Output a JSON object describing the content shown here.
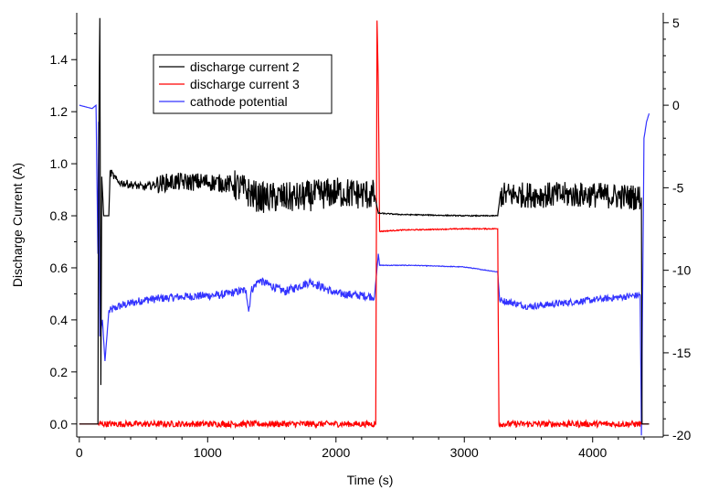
{
  "chart_data": {
    "type": "line",
    "xlabel": "Time (s)",
    "ylabel": "Discharge Current (A)",
    "y2label": "",
    "xlim": [
      -20,
      4550
    ],
    "ylim": [
      -0.05,
      1.58
    ],
    "y2lim": [
      -20.1,
      5.6
    ],
    "x_ticks": [
      0,
      1000,
      2000,
      3000,
      4000
    ],
    "y_ticks": [
      0.0,
      0.2,
      0.4,
      0.6,
      0.8,
      1.0,
      1.2,
      1.4
    ],
    "y2_ticks": [
      -20,
      -15,
      -10,
      -5,
      0,
      5
    ],
    "grid": false,
    "legend_position": "top-left",
    "series": [
      {
        "name": "discharge current 2",
        "axis": "left",
        "color": "#000000",
        "points": [
          [
            0,
            0.0
          ],
          [
            145,
            0.0
          ],
          [
            150,
            1.0
          ],
          [
            160,
            1.56
          ],
          [
            168,
            0.15
          ],
          [
            175,
            0.95
          ],
          [
            190,
            0.8
          ],
          [
            230,
            0.8
          ],
          [
            240,
            0.97
          ],
          [
            300,
            0.93
          ],
          [
            500,
            0.91
          ],
          [
            700,
            0.93
          ],
          [
            1000,
            0.93
          ],
          [
            1200,
            0.92
          ],
          [
            1400,
            0.87
          ],
          [
            1700,
            0.87
          ],
          [
            2000,
            0.89
          ],
          [
            2300,
            0.88
          ],
          [
            2330,
            0.81
          ],
          [
            2500,
            0.805
          ],
          [
            3000,
            0.8
          ],
          [
            3260,
            0.8
          ],
          [
            3280,
            0.88
          ],
          [
            4000,
            0.88
          ],
          [
            4380,
            0.87
          ],
          [
            4385,
            0.0
          ],
          [
            4440,
            0.0
          ]
        ],
        "noise": [
          [
            0,
            150,
            0.0
          ],
          [
            240,
            600,
            0.015
          ],
          [
            600,
            1200,
            0.035
          ],
          [
            1200,
            2300,
            0.06
          ],
          [
            2330,
            3260,
            0.002
          ],
          [
            3280,
            4380,
            0.05
          ]
        ]
      },
      {
        "name": "discharge current 3",
        "axis": "left",
        "color": "#ff0000",
        "points": [
          [
            0,
            0.0
          ],
          [
            2310,
            0.0
          ],
          [
            2320,
            1.55
          ],
          [
            2330,
            1.3
          ],
          [
            2340,
            0.74
          ],
          [
            2500,
            0.745
          ],
          [
            3000,
            0.75
          ],
          [
            3260,
            0.75
          ],
          [
            3270,
            0.0
          ],
          [
            4380,
            0.0
          ],
          [
            4440,
            0.0
          ]
        ],
        "noise": [
          [
            150,
            2310,
            0.012
          ],
          [
            2340,
            3260,
            0.002
          ],
          [
            3270,
            4380,
            0.012
          ]
        ]
      },
      {
        "name": "cathode potential",
        "axis": "right",
        "color": "#3333ff",
        "points": [
          [
            0,
            0.0
          ],
          [
            100,
            -0.2
          ],
          [
            130,
            0.0
          ],
          [
            145,
            -9.0
          ],
          [
            150,
            -1.0
          ],
          [
            160,
            -14.0
          ],
          [
            180,
            -13.0
          ],
          [
            200,
            -15.5
          ],
          [
            230,
            -12.5
          ],
          [
            300,
            -12.2
          ],
          [
            500,
            -11.8
          ],
          [
            800,
            -11.6
          ],
          [
            1100,
            -11.5
          ],
          [
            1300,
            -11.2
          ],
          [
            1320,
            -12.5
          ],
          [
            1340,
            -11.2
          ],
          [
            1400,
            -10.6
          ],
          [
            1600,
            -11.3
          ],
          [
            1800,
            -10.7
          ],
          [
            2000,
            -11.4
          ],
          [
            2300,
            -11.6
          ],
          [
            2330,
            -9.0
          ],
          [
            2340,
            -9.7
          ],
          [
            2600,
            -9.7
          ],
          [
            3000,
            -9.8
          ],
          [
            3260,
            -10.1
          ],
          [
            3275,
            -11.8
          ],
          [
            3500,
            -12.2
          ],
          [
            4000,
            -11.8
          ],
          [
            4370,
            -11.5
          ],
          [
            4380,
            -20.0
          ],
          [
            4400,
            -2.0
          ],
          [
            4420,
            -1.0
          ],
          [
            4440,
            -0.5
          ]
        ],
        "noise": [
          [
            230,
            2300,
            0.25
          ],
          [
            3280,
            4370,
            0.2
          ],
          [
            2340,
            3260,
            0.02
          ]
        ]
      }
    ]
  }
}
